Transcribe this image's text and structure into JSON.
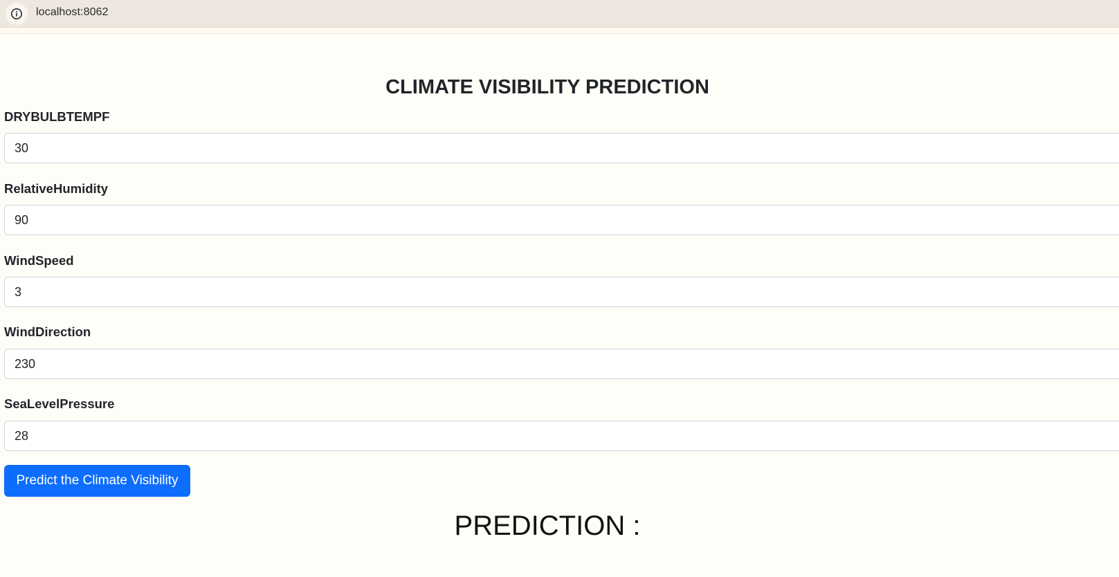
{
  "browser": {
    "url": "localhost:8062",
    "site_info_icon": "info-circle-icon"
  },
  "page": {
    "title": "CLIMATE VISIBILITY PREDICTION"
  },
  "form": {
    "fields": [
      {
        "label": "DRYBULBTEMPF",
        "value": "30"
      },
      {
        "label": "RelativeHumidity",
        "value": "90"
      },
      {
        "label": "WindSpeed",
        "value": "3"
      },
      {
        "label": "WindDirection",
        "value": "230"
      },
      {
        "label": "SeaLevelPressure",
        "value": "28"
      }
    ],
    "submit_label": "Predict the Climate Visibility"
  },
  "result": {
    "heading": "PREDICTION :"
  },
  "colors": {
    "button_primary": "#0d6efd",
    "address_bar": "#eee7df",
    "page_background": "#fffdf7"
  }
}
